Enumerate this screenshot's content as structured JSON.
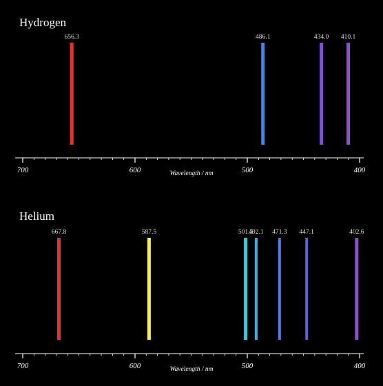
{
  "chart_data": [
    {
      "type": "bar",
      "title": "Hydrogen",
      "xlabel": "Wavelength / nm",
      "xlim": [
        700,
        400
      ],
      "ticks": [
        "700",
        "600",
        "500",
        "400"
      ],
      "lines": [
        {
          "wavelength": 656.3,
          "label": "656.3",
          "color": "#e8302c"
        },
        {
          "wavelength": 486.1,
          "label": "486.1",
          "color": "#3a8cf0"
        },
        {
          "wavelength": 434.0,
          "label": "434.0",
          "color": "#7e52d6"
        },
        {
          "wavelength": 410.1,
          "label": "410.1",
          "color": "#8a4fd2"
        }
      ]
    },
    {
      "type": "bar",
      "title": "Helium",
      "xlabel": "Wavelength / nm",
      "xlim": [
        700,
        400
      ],
      "ticks": [
        "700",
        "600",
        "500",
        "400"
      ],
      "lines": [
        {
          "wavelength": 667.8,
          "label": "667.8",
          "color": "#e8302c"
        },
        {
          "wavelength": 587.5,
          "label": "587.5",
          "color": "#f5f04a"
        },
        {
          "wavelength": 501.5,
          "label": "501.5",
          "color": "#3ec8d8"
        },
        {
          "wavelength": 492.1,
          "label": "492.1",
          "color": "#38b0e0"
        },
        {
          "wavelength": 471.3,
          "label": "471.3",
          "color": "#4a7ee8"
        },
        {
          "wavelength": 447.1,
          "label": "447.1",
          "color": "#5a64e0"
        },
        {
          "wavelength": 402.6,
          "label": "402.6",
          "color": "#8a4fd2"
        }
      ]
    }
  ]
}
